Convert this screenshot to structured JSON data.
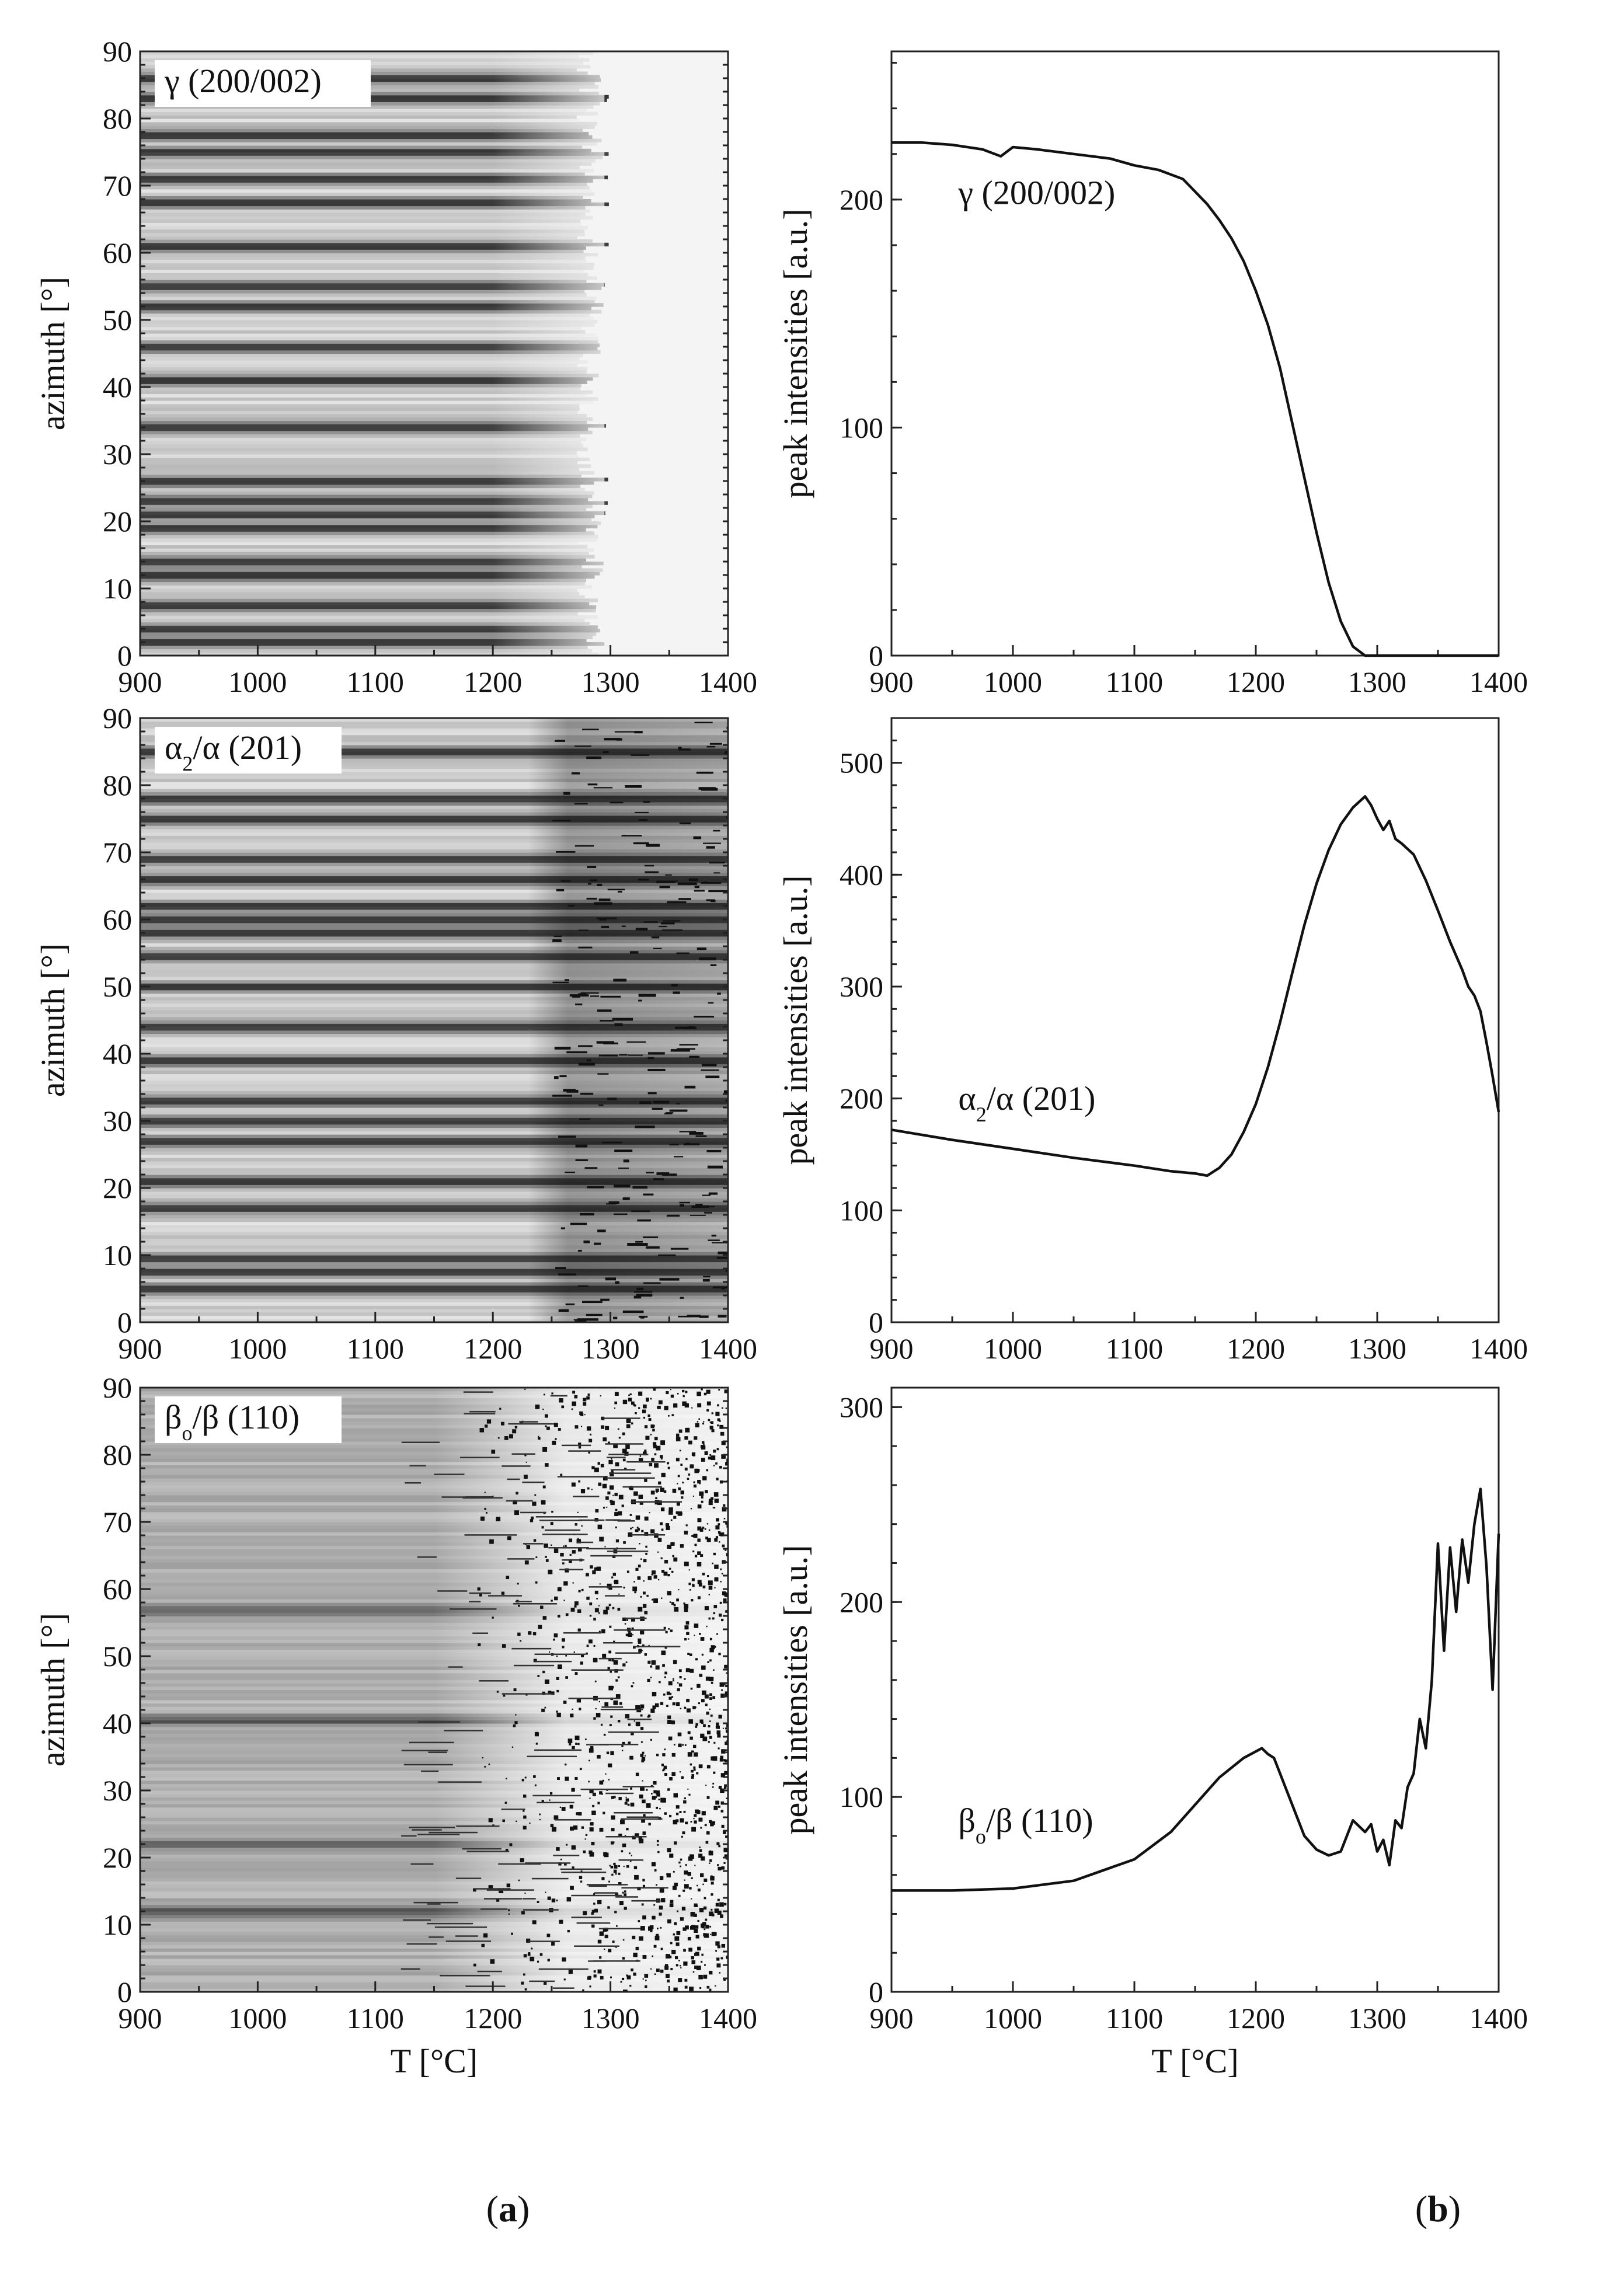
{
  "figure": {
    "sub_labels": [
      "(a)",
      "(b)"
    ],
    "sub_label_letters": [
      "a",
      "b"
    ]
  },
  "chart_data": [
    {
      "type": "heatmap",
      "panel": "a",
      "label": "γ (200/002)",
      "xlabel": "",
      "ylabel": "azimuth [°]",
      "xlim": [
        900,
        1400
      ],
      "ylim": [
        0,
        90
      ],
      "xticks": [
        900,
        1000,
        1100,
        1200,
        1300,
        1400
      ],
      "yticks": [
        0,
        10,
        20,
        30,
        40,
        50,
        60,
        70,
        80,
        90
      ],
      "cutoff_T": 1280,
      "dark_bands_azimuth": [
        2,
        4,
        7.5,
        12,
        14,
        19,
        21,
        23,
        26,
        34,
        41,
        46,
        52,
        55,
        61,
        67.5,
        71,
        75,
        77.5,
        83,
        86
      ],
      "colorscale": "grayscale"
    },
    {
      "type": "heatmap",
      "panel": "a",
      "label": "α2/α (201)",
      "xlabel": "",
      "ylabel": "azimuth [°]",
      "xlim": [
        900,
        1400
      ],
      "ylim": [
        0,
        90
      ],
      "xticks": [
        900,
        1000,
        1100,
        1200,
        1300,
        1400
      ],
      "yticks": [
        0,
        10,
        20,
        30,
        40,
        50,
        60,
        70,
        80,
        90
      ],
      "dark_bands_azimuth": [
        5,
        7.5,
        9.5,
        17,
        21,
        27,
        30,
        33,
        39,
        44,
        50,
        54.5,
        58,
        60,
        62,
        66,
        69,
        75,
        78,
        85
      ],
      "colorscale": "grayscale"
    },
    {
      "type": "heatmap",
      "panel": "a",
      "label": "βo/β (110)",
      "xlabel": "T [°C]",
      "ylabel": "azimuth [°]",
      "xlim": [
        900,
        1400
      ],
      "ylim": [
        0,
        90
      ],
      "xticks": [
        900,
        1000,
        1100,
        1200,
        1300,
        1400
      ],
      "yticks": [
        0,
        10,
        20,
        30,
        40,
        50,
        60,
        70,
        80,
        90
      ],
      "dark_bands_azimuth": [
        12,
        22,
        40.5,
        57
      ],
      "colorscale": "grayscale"
    },
    {
      "type": "line",
      "panel": "b",
      "label": "γ (200/002)",
      "xlabel": "",
      "ylabel": "peak intensities [a.u.]",
      "xlim": [
        900,
        1400
      ],
      "ylim": [
        0,
        265
      ],
      "xticks": [
        900,
        1000,
        1100,
        1200,
        1300,
        1400
      ],
      "yticks": [
        0,
        100,
        200
      ],
      "x": [
        900,
        925,
        950,
        975,
        990,
        1000,
        1020,
        1050,
        1080,
        1100,
        1120,
        1140,
        1160,
        1170,
        1180,
        1190,
        1200,
        1210,
        1220,
        1230,
        1240,
        1250,
        1260,
        1270,
        1280,
        1290,
        1295,
        1300,
        1350,
        1400
      ],
      "values": [
        225,
        225,
        224,
        222,
        219,
        223,
        222,
        220,
        218,
        215,
        213,
        209,
        198,
        191,
        183,
        173,
        160,
        145,
        126,
        102,
        78,
        54,
        32,
        15,
        4,
        0,
        0,
        0,
        0,
        0
      ]
    },
    {
      "type": "line",
      "panel": "b",
      "label": "α2/α (201)",
      "xlabel": "",
      "ylabel": "peak intensities [a.u.]",
      "xlim": [
        900,
        1400
      ],
      "ylim": [
        0,
        540
      ],
      "xticks": [
        900,
        1000,
        1100,
        1200,
        1300,
        1400
      ],
      "yticks": [
        0,
        100,
        200,
        300,
        400,
        500
      ],
      "x": [
        900,
        950,
        1000,
        1050,
        1100,
        1130,
        1150,
        1160,
        1170,
        1180,
        1190,
        1200,
        1210,
        1220,
        1230,
        1240,
        1250,
        1260,
        1270,
        1280,
        1290,
        1295,
        1300,
        1305,
        1310,
        1315,
        1320,
        1330,
        1340,
        1350,
        1360,
        1370,
        1375,
        1380,
        1385,
        1390,
        1395,
        1400
      ],
      "values": [
        172,
        163,
        155,
        147,
        140,
        135,
        133,
        131,
        138,
        150,
        170,
        195,
        228,
        268,
        312,
        355,
        392,
        422,
        445,
        460,
        470,
        462,
        450,
        440,
        448,
        432,
        428,
        418,
        395,
        368,
        340,
        315,
        300,
        292,
        278,
        250,
        220,
        188
      ]
    },
    {
      "type": "line",
      "panel": "b",
      "label": "βo/β (110)",
      "xlabel": "T [°C]",
      "ylabel": "peak intensities [a.u.]",
      "xlim": [
        900,
        1400
      ],
      "ylim": [
        0,
        310
      ],
      "xticks": [
        900,
        1000,
        1100,
        1200,
        1300,
        1400
      ],
      "yticks": [
        0,
        100,
        200,
        300
      ],
      "x": [
        900,
        950,
        1000,
        1050,
        1100,
        1130,
        1150,
        1170,
        1190,
        1205,
        1210,
        1215,
        1220,
        1230,
        1240,
        1250,
        1260,
        1270,
        1275,
        1280,
        1285,
        1290,
        1295,
        1300,
        1305,
        1310,
        1315,
        1320,
        1325,
        1330,
        1335,
        1340,
        1345,
        1350,
        1355,
        1360,
        1365,
        1370,
        1375,
        1380,
        1385,
        1390,
        1395,
        1400
      ],
      "values": [
        52,
        52,
        53,
        57,
        68,
        82,
        96,
        110,
        120,
        125,
        122,
        120,
        112,
        96,
        80,
        73,
        70,
        72,
        80,
        88,
        85,
        82,
        86,
        72,
        78,
        65,
        88,
        84,
        105,
        112,
        140,
        125,
        160,
        230,
        175,
        228,
        195,
        232,
        210,
        240,
        258,
        218,
        155,
        235
      ]
    }
  ]
}
